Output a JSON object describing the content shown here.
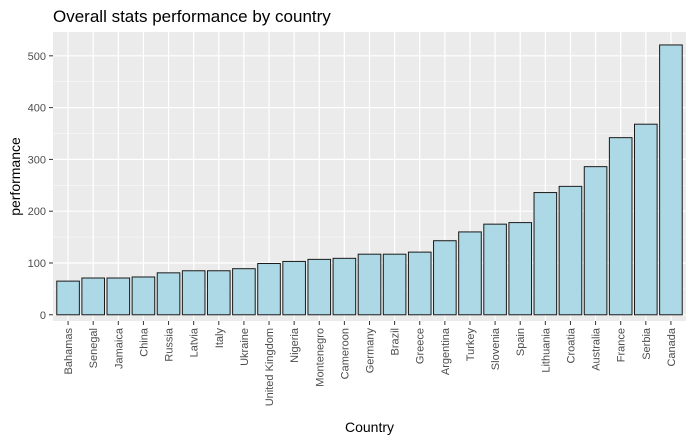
{
  "chart_data": {
    "type": "bar",
    "title": "Overall stats performance by country",
    "xlabel": "Country",
    "ylabel": "performance",
    "categories": [
      "Bahamas",
      "Senegal",
      "Jamaica",
      "China",
      "Russia",
      "Latvia",
      "Italy",
      "Ukraine",
      "United Kingdom",
      "Nigeria",
      "Montenegro",
      "Cameroon",
      "Germany",
      "Brazil",
      "Greece",
      "Argentina",
      "Turkey",
      "Slovenia",
      "Spain",
      "Lithuania",
      "Croatia",
      "Australia",
      "France",
      "Serbia",
      "Canada"
    ],
    "values": [
      65,
      71,
      71,
      73,
      81,
      85,
      85,
      89,
      99,
      103,
      107,
      109,
      117,
      117,
      121,
      143,
      160,
      175,
      178,
      236,
      248,
      286,
      342,
      368,
      521
    ],
    "ylim": [
      -12,
      546
    ],
    "yticks": [
      0,
      100,
      200,
      300,
      400,
      500
    ],
    "grid": true,
    "colors": {
      "panel": "#ebebeb",
      "grid_major": "#ffffff",
      "bar_fill": "#add8e6",
      "bar_stroke": "#1a1a1a",
      "tick_text": "#4d4d4d",
      "axis_title": "#000000"
    }
  }
}
